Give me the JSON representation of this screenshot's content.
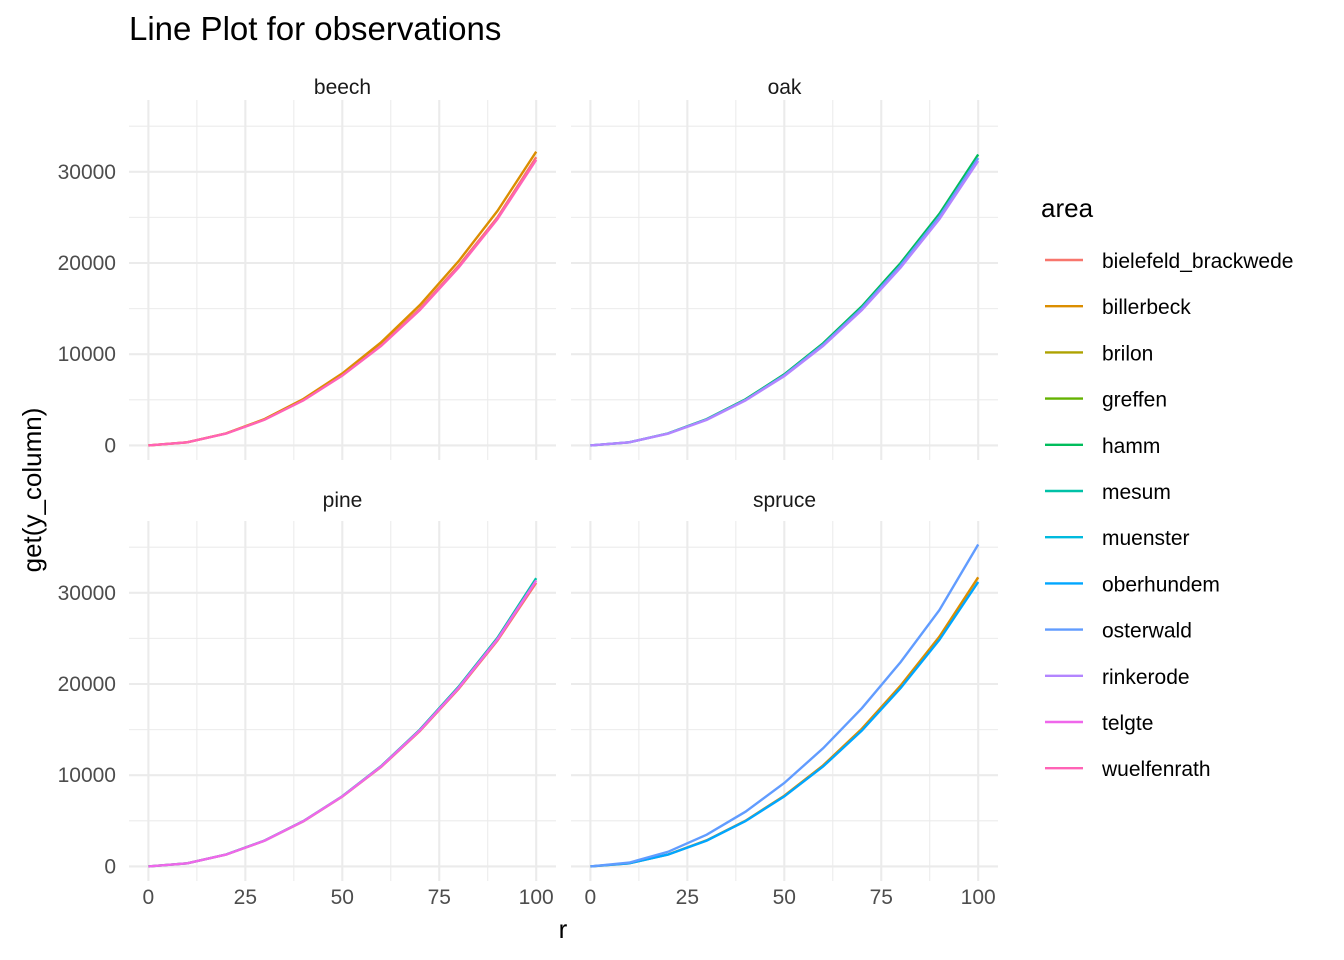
{
  "chart_data": {
    "type": "line",
    "title": "Line Plot for observations",
    "xlabel": "r",
    "ylabel": "get(y_column)",
    "xlim": [
      0,
      100
    ],
    "ylim": [
      0,
      35000
    ],
    "x_ticks": [
      "0",
      "25",
      "50",
      "75",
      "100"
    ],
    "y_ticks": [
      "0",
      "10000",
      "20000",
      "30000"
    ],
    "grid": true,
    "legend": {
      "title": "area",
      "position": "right",
      "entries": [
        {
          "name": "bielefeld_brackwede",
          "color": "#F8766D"
        },
        {
          "name": "billerbeck",
          "color": "#DB8E00"
        },
        {
          "name": "brilon",
          "color": "#AEA200"
        },
        {
          "name": "greffen",
          "color": "#64B200"
        },
        {
          "name": "hamm",
          "color": "#00BD5C"
        },
        {
          "name": "mesum",
          "color": "#00C1A7"
        },
        {
          "name": "muenster",
          "color": "#00BADE"
        },
        {
          "name": "oberhundem",
          "color": "#00A6FF"
        },
        {
          "name": "osterwald",
          "color": "#619CFF"
        },
        {
          "name": "rinkerode",
          "color": "#B385FF"
        },
        {
          "name": "telgte",
          "color": "#EF67EB"
        },
        {
          "name": "wuelfenrath",
          "color": "#FF63B6"
        }
      ]
    },
    "panels": [
      {
        "label": "beech",
        "series": [
          {
            "name": "bielefeld_brackwede",
            "x": [
              0,
              10,
              20,
              30,
              40,
              50,
              60,
              70,
              80,
              90,
              100
            ],
            "y": [
              0,
              340,
              1300,
              2850,
              5000,
              7700,
              11000,
              15000,
              19700,
              25000,
              31600
            ]
          },
          {
            "name": "billerbeck",
            "x": [
              0,
              10,
              20,
              30,
              40,
              50,
              60,
              70,
              80,
              90,
              100
            ],
            "y": [
              0,
              345,
              1320,
              2900,
              5100,
              7900,
              11300,
              15400,
              20200,
              25700,
              32200
            ]
          },
          {
            "name": "wuelfenrath",
            "x": [
              0,
              10,
              20,
              30,
              40,
              50,
              60,
              70,
              80,
              90,
              100
            ],
            "y": [
              0,
              335,
              1290,
              2820,
              4950,
              7650,
              10900,
              14850,
              19500,
              24800,
              31300
            ]
          }
        ]
      },
      {
        "label": "oak",
        "series": [
          {
            "name": "hamm",
            "x": [
              0,
              10,
              20,
              30,
              40,
              50,
              60,
              70,
              80,
              90,
              100
            ],
            "y": [
              0,
              345,
              1320,
              2880,
              5050,
              7800,
              11200,
              15250,
              20000,
              25400,
              31900
            ]
          },
          {
            "name": "osterwald",
            "x": [
              0,
              10,
              20,
              30,
              40,
              50,
              60,
              70,
              80,
              90,
              100
            ],
            "y": [
              0,
              340,
              1300,
              2840,
              4980,
              7700,
              11050,
              15050,
              19750,
              25100,
              31500
            ]
          },
          {
            "name": "rinkerode",
            "x": [
              0,
              10,
              20,
              30,
              40,
              50,
              60,
              70,
              80,
              90,
              100
            ],
            "y": [
              0,
              335,
              1280,
              2800,
              4920,
              7600,
              10900,
              14850,
              19500,
              24800,
              31200
            ]
          }
        ]
      },
      {
        "label": "pine",
        "series": [
          {
            "name": "bielefeld_brackwede",
            "x": [
              0,
              10,
              20,
              30,
              40,
              50,
              60,
              70,
              80,
              90,
              100
            ],
            "y": [
              0,
              335,
              1290,
              2820,
              4950,
              7650,
              10900,
              14850,
              19450,
              24750,
              31100
            ]
          },
          {
            "name": "mesum",
            "x": [
              0,
              10,
              20,
              30,
              40,
              50,
              60,
              70,
              80,
              90,
              100
            ],
            "y": [
              0,
              340,
              1300,
              2840,
              4980,
              7700,
              11000,
              15000,
              19700,
              25050,
              31600
            ]
          },
          {
            "name": "telgte",
            "x": [
              0,
              10,
              20,
              30,
              40,
              50,
              60,
              70,
              80,
              90,
              100
            ],
            "y": [
              0,
              338,
              1295,
              2830,
              4965,
              7680,
              10950,
              14920,
              19580,
              24900,
              31350
            ]
          }
        ]
      },
      {
        "label": "spruce",
        "series": [
          {
            "name": "billerbeck",
            "x": [
              0,
              10,
              20,
              30,
              40,
              50,
              60,
              70,
              80,
              90,
              100
            ],
            "y": [
              0,
              345,
              1310,
              2860,
              5010,
              7750,
              11080,
              15100,
              19820,
              25200,
              31700
            ]
          },
          {
            "name": "oberhundem",
            "x": [
              0,
              10,
              20,
              30,
              40,
              50,
              60,
              70,
              80,
              90,
              100
            ],
            "y": [
              0,
              338,
              1295,
              2830,
              4965,
              7680,
              10950,
              14900,
              19550,
              24850,
              31200
            ]
          },
          {
            "name": "osterwald",
            "x": [
              0,
              10,
              20,
              30,
              40,
              50,
              60,
              70,
              80,
              90,
              100
            ],
            "y": [
              0,
              420,
              1600,
              3480,
              6000,
              9150,
              12950,
              17350,
              22400,
              28100,
              35300
            ]
          }
        ]
      }
    ]
  }
}
